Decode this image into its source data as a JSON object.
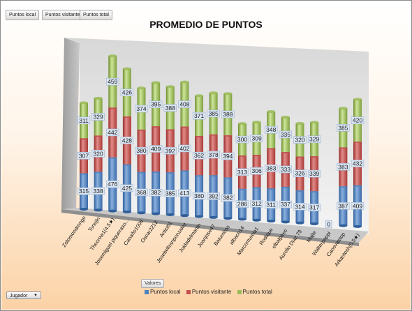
{
  "field_buttons": [
    "Puntos local",
    "Puntos visitante",
    "Puntos total"
  ],
  "valores_label": "Valores",
  "jugador_label": "Jugador",
  "colors": {
    "local": "#4f81bd",
    "visitante": "#c0504d",
    "total": "#9bbb59"
  },
  "chart_data": {
    "type": "bar",
    "stacked": true,
    "title": "PROMEDIO DE PUNTOS",
    "xlabel": "",
    "ylabel": "",
    "legend_position": "bottom",
    "categories": [
      "Zolomondrongo",
      "Tonejin",
      "Thecrow1(4.5★)",
      "Josemiguel piqueraso...",
      "Canaño1006",
      "Oscar2213",
      "Artist61",
      "Josebeltranponzalez",
      "Juidadelmartin",
      "Juanjose47",
      "Baturricos",
      "albaco14",
      "Marcomurcia1",
      "Rodique",
      "elbafpirec",
      "Aurelio Diaz 79",
      "Majte",
      "Walterpappi",
      "Canovastop",
      "Arkantosh(0.5★)"
    ],
    "series": [
      {
        "name": "Puntos local",
        "values": [
          315,
          338,
          476,
          425,
          368,
          382,
          385,
          413,
          380,
          392,
          382,
          286,
          312,
          311,
          337,
          314,
          317,
          0,
          387,
          409
        ]
      },
      {
        "name": "Puntos visitante",
        "values": [
          307,
          320,
          442,
          428,
          380,
          409,
          392,
          402,
          362,
          378,
          394,
          313,
          306,
          383,
          333,
          326,
          339,
          0,
          383,
          432
        ]
      },
      {
        "name": "Puntos total",
        "values": [
          311,
          329,
          459,
          426,
          374,
          395,
          388,
          408,
          371,
          385,
          388,
          300,
          309,
          348,
          335,
          320,
          329,
          0,
          385,
          420
        ]
      }
    ]
  }
}
